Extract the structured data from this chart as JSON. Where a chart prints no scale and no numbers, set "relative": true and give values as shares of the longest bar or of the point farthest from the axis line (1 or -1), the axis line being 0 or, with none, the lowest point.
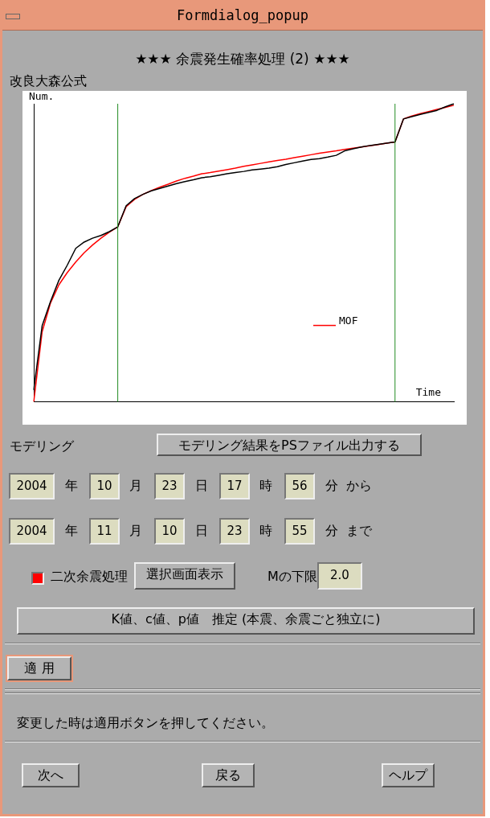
{
  "chart_data": {
    "type": "line",
    "title": "★★★ 余震発生確率処理 (2) ★★★",
    "subtitle": "改良大森公式",
    "xlabel": "Time",
    "ylabel": "Num.",
    "relative": true,
    "legend": "bottom right",
    "grid": false,
    "marker": "none",
    "line_style": "solid",
    "categories": [
      null,
      null,
      null,
      null,
      null,
      null,
      null,
      null,
      null,
      null,
      null,
      null,
      null,
      null,
      null,
      null,
      null,
      null,
      null,
      null,
      null,
      null,
      null,
      null,
      null,
      null,
      null,
      null,
      null,
      null,
      null,
      null,
      null,
      null,
      null,
      null,
      null,
      null,
      null,
      null,
      null,
      null,
      null,
      null,
      null,
      null,
      null,
      null,
      null,
      null,
      null
    ],
    "series": [
      {
        "color": "#000000",
        "values": [
          0.04,
          0.255,
          0.337,
          0.408,
          0.459,
          0.515,
          0.536,
          0.549,
          0.558,
          0.571,
          0.587,
          0.658,
          0.682,
          0.696,
          0.708,
          0.716,
          0.724,
          0.732,
          0.739,
          0.745,
          0.752,
          0.755,
          0.76,
          0.765,
          0.769,
          0.773,
          0.778,
          0.781,
          0.784,
          0.789,
          0.796,
          0.802,
          0.808,
          0.813,
          0.816,
          0.821,
          0.827,
          0.842,
          0.849,
          0.855,
          0.86,
          0.864,
          0.868,
          0.872,
          0.949,
          0.957,
          0.964,
          0.971,
          0.978,
          0.99,
          1.0
        ]
      },
      {
        "name": "MOF",
        "color": "#ff0000",
        "values": [
          0,
          0.235,
          0.332,
          0.393,
          0.434,
          0.469,
          0.5,
          0.526,
          0.549,
          0.569,
          0.587,
          0.655,
          0.679,
          0.696,
          0.709,
          0.72,
          0.73,
          0.741,
          0.75,
          0.757,
          0.765,
          0.769,
          0.774,
          0.779,
          0.784,
          0.79,
          0.795,
          0.8,
          0.805,
          0.81,
          0.814,
          0.819,
          0.824,
          0.829,
          0.834,
          0.838,
          0.842,
          0.847,
          0.851,
          0.855,
          0.859,
          0.863,
          0.868,
          0.872,
          0.949,
          0.959,
          0.967,
          0.974,
          0.981,
          0.988,
          0.995
        ]
      }
    ],
    "annotations": [
      "Formdialog_popup",
      "モデリング",
      "モデリング結果をPSファイル出力する",
      "2004",
      "年",
      "10",
      "月",
      "23",
      "日",
      "17",
      "時",
      "56",
      "分",
      "から",
      "2004",
      "年",
      "11",
      "月",
      "10",
      "日",
      "23",
      "時",
      "55",
      "分",
      "まで",
      "二次余震処理",
      "選択画面表示",
      "Mの下限",
      "2.0",
      "K値、c値、p値　推定 (本震、余震ごと独立に)",
      "適 用",
      "変更した時は適用ボタンを押してください。",
      "次へ",
      "戻る",
      "ヘルプ"
    ]
  }
}
